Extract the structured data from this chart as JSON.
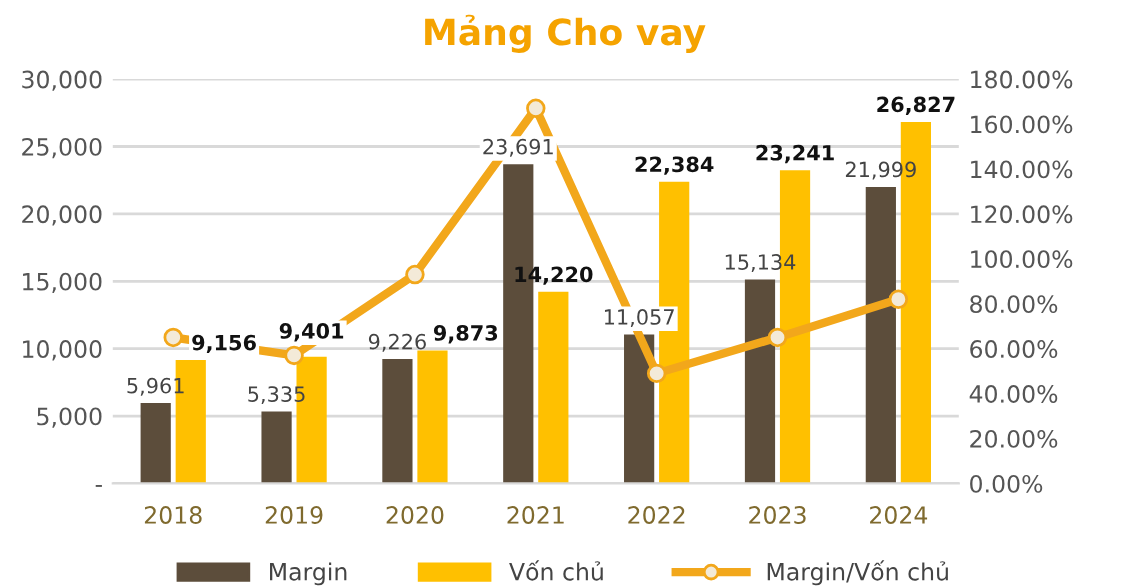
{
  "chart_data": {
    "type": "bar",
    "title": "Mảng Cho vay",
    "categories": [
      "2018",
      "2019",
      "2020",
      "2021",
      "2022",
      "2023",
      "2024"
    ],
    "series": [
      {
        "name": "Margin",
        "color": "#5c4d3b",
        "values": [
          5961,
          5335,
          9226,
          23691,
          11057,
          15134,
          21999
        ],
        "value_labels": [
          "5,961",
          "5,335",
          "9,226",
          "23,691",
          "11,057",
          "15,134",
          "21,999"
        ]
      },
      {
        "name": "Vốn chủ",
        "color": "#ffc000",
        "values": [
          9156,
          9401,
          9873,
          14220,
          22384,
          23241,
          26827
        ],
        "value_labels": [
          "9,156",
          "9,401",
          "9,873",
          "14,220",
          "22,384",
          "23,241",
          "26,827"
        ]
      },
      {
        "name": "Margin/Vốn chủ",
        "type": "line",
        "axis": "y2",
        "color": "#f2a71b",
        "marker": "circle",
        "values": [
          65,
          57,
          93,
          167,
          49,
          65,
          82
        ]
      }
    ],
    "ylim": [
      0,
      30000
    ],
    "yticks": [
      {
        "value": 0,
        "label": "-"
      },
      {
        "value": 5000,
        "label": "5,000"
      },
      {
        "value": 10000,
        "label": "10,000"
      },
      {
        "value": 15000,
        "label": "15,000"
      },
      {
        "value": 20000,
        "label": "20,000"
      },
      {
        "value": 25000,
        "label": "25,000"
      },
      {
        "value": 30000,
        "label": "30,000"
      }
    ],
    "y2lim": [
      0,
      180
    ],
    "y2ticks": [
      {
        "value": 0,
        "label": "0.00%"
      },
      {
        "value": 20,
        "label": "20.00%"
      },
      {
        "value": 40,
        "label": "40.00%"
      },
      {
        "value": 60,
        "label": "60.00%"
      },
      {
        "value": 80,
        "label": "80.00%"
      },
      {
        "value": 100,
        "label": "100.00%"
      },
      {
        "value": 120,
        "label": "120.00%"
      },
      {
        "value": 140,
        "label": "140.00%"
      },
      {
        "value": 160,
        "label": "160.00%"
      },
      {
        "value": 180,
        "label": "180.00%"
      }
    ],
    "grid": "y",
    "legend": "bottom"
  }
}
